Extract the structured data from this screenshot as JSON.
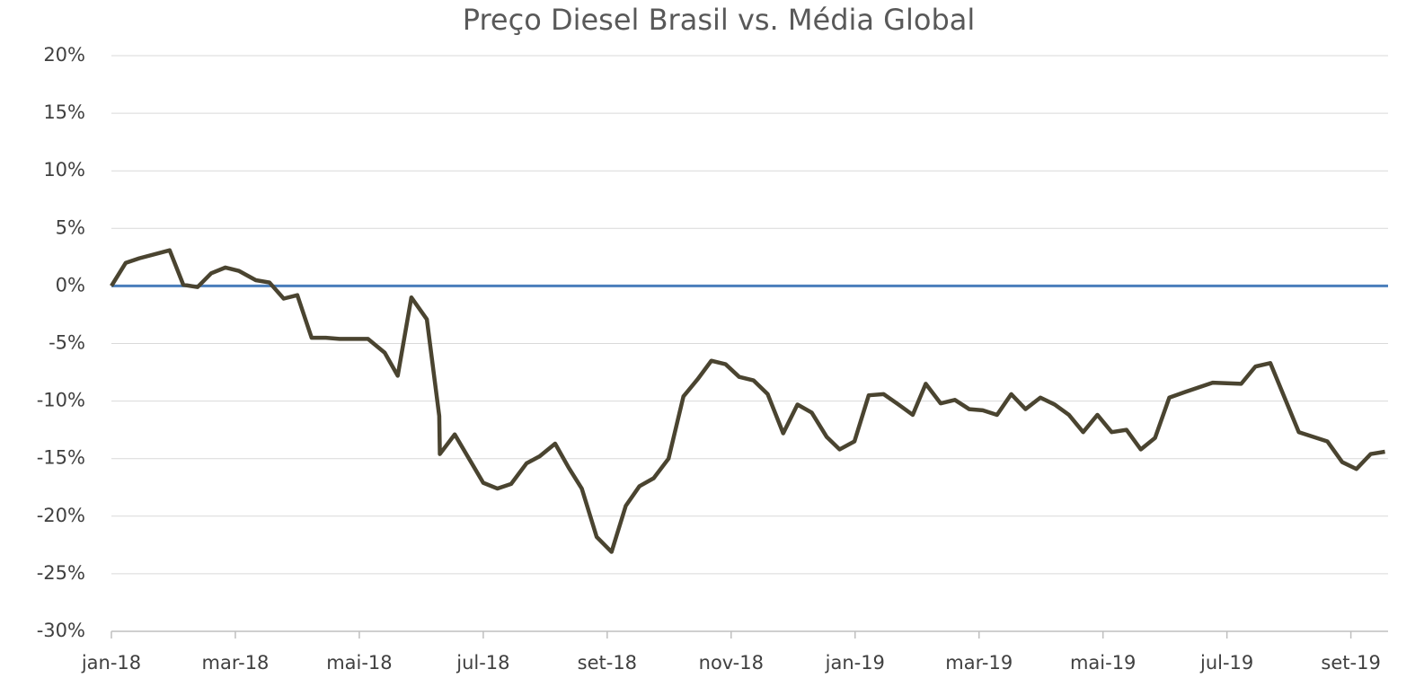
{
  "chart_data": {
    "type": "line",
    "title": "Preço Diesel Brasil vs. Média Global",
    "series": [
      {
        "color": "#4a4430",
        "x": [
          0,
          0.23,
          0.45,
          0.94,
          1.16,
          1.39,
          1.61,
          1.84,
          2.06,
          2.33,
          2.55,
          2.78,
          3.0,
          3.23,
          3.46,
          3.68,
          4.14,
          4.41,
          4.62,
          4.84,
          5.09,
          5.29,
          5.3,
          5.54,
          5.77,
          6.0,
          6.23,
          6.45,
          6.7,
          6.91,
          7.16,
          7.38,
          7.59,
          7.83,
          8.07,
          8.3,
          8.52,
          8.75,
          8.99,
          9.23,
          9.46,
          9.68,
          9.91,
          10.13,
          10.36,
          10.59,
          10.84,
          11.07,
          11.3,
          11.54,
          11.75,
          11.99,
          12.22,
          12.46,
          12.7,
          12.93,
          13.14,
          13.38,
          13.61,
          13.84,
          14.06,
          14.29,
          14.52,
          14.75,
          14.99,
          15.22,
          15.45,
          15.68,
          15.91,
          16.14,
          16.38,
          16.61,
          16.84,
          17.07,
          17.33,
          17.77,
          18.23,
          18.46,
          18.7,
          18.93,
          19.16,
          19.39,
          19.62,
          19.86,
          20.09,
          20.32,
          20.55
        ],
        "values": [
          0,
          2.0,
          2.4,
          3.1,
          0.1,
          -0.1,
          1.1,
          1.6,
          1.3,
          0.5,
          0.3,
          -1.1,
          -0.8,
          -4.5,
          -4.5,
          -4.6,
          -4.6,
          -5.8,
          -7.8,
          -1.0,
          -2.9,
          -11.3,
          -14.6,
          -12.9,
          -15.0,
          -17.1,
          -17.6,
          -17.2,
          -15.4,
          -14.8,
          -13.7,
          -15.8,
          -17.6,
          -21.8,
          -23.1,
          -19.1,
          -17.4,
          -16.7,
          -15.0,
          -9.6,
          -8.1,
          -6.5,
          -6.8,
          -7.9,
          -8.2,
          -9.4,
          -12.8,
          -10.3,
          -11.0,
          -13.1,
          -14.2,
          -13.5,
          -9.5,
          -9.4,
          -10.3,
          -11.2,
          -8.5,
          -10.2,
          -9.9,
          -10.7,
          -10.8,
          -11.2,
          -9.4,
          -10.7,
          -9.7,
          -10.3,
          -11.2,
          -12.7,
          -11.2,
          -12.7,
          -12.5,
          -14.2,
          -13.2,
          -9.7,
          -9.2,
          -8.4,
          -8.5,
          -7.0,
          -6.7,
          -9.7,
          -12.7,
          -13.1,
          -13.5,
          -15.3,
          -15.9,
          -14.6,
          -14.4
        ]
      },
      {
        "color": "#4a7ebb",
        "x": [
          0,
          20.6
        ],
        "values": [
          0,
          0
        ]
      }
    ],
    "xlim": [
      0,
      20.6
    ],
    "xticks": [
      {
        "value": 0,
        "label": "jan-18"
      },
      {
        "value": 2,
        "label": "mar-18"
      },
      {
        "value": 4,
        "label": "mai-18"
      },
      {
        "value": 6,
        "label": "jul-18"
      },
      {
        "value": 8,
        "label": "set-18"
      },
      {
        "value": 10,
        "label": "nov-18"
      },
      {
        "value": 12,
        "label": "jan-19"
      },
      {
        "value": 14,
        "label": "mar-19"
      },
      {
        "value": 16,
        "label": "mai-19"
      },
      {
        "value": 18,
        "label": "jul-19"
      },
      {
        "value": 20,
        "label": "set-19"
      }
    ],
    "ylim": [
      -30,
      20
    ],
    "yticks": [
      {
        "value": -30,
        "label": "-30%"
      },
      {
        "value": -25,
        "label": "-25%"
      },
      {
        "value": -20,
        "label": "-20%"
      },
      {
        "value": -15,
        "label": "-15%"
      },
      {
        "value": -10,
        "label": "-10%"
      },
      {
        "value": -5,
        "label": "-5%"
      },
      {
        "value": 0,
        "label": "0%"
      },
      {
        "value": 5,
        "label": "5%"
      },
      {
        "value": 10,
        "label": "10%"
      },
      {
        "value": 15,
        "label": "15%"
      },
      {
        "value": 20,
        "label": "20%"
      }
    ],
    "grid": true
  }
}
